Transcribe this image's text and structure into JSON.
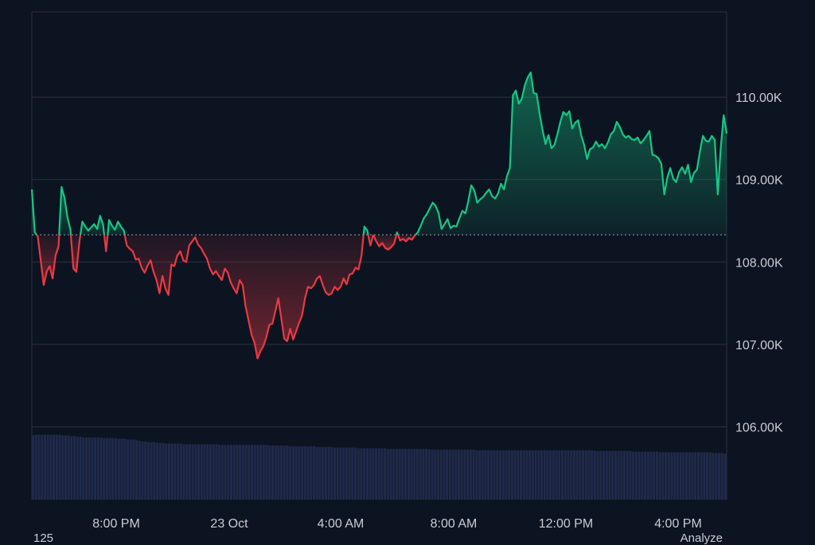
{
  "chart_data": {
    "type": "area",
    "title": "",
    "xlabel": "",
    "ylabel": "",
    "ylim": [
      105000,
      111000
    ],
    "y_ticks": [
      106000,
      107000,
      108000,
      109000,
      110000
    ],
    "y_tick_labels": [
      "106.00K",
      "107.00K",
      "108.00K",
      "109.00K",
      "110.00K"
    ],
    "x_tick_labels": [
      "8:00 PM",
      "23 Oct",
      "4:00 AM",
      "8:00 AM",
      "12:00 PM",
      "4:00 PM"
    ],
    "baseline": 108330,
    "colors": {
      "above": "#16c784",
      "below": "#ea3943",
      "volume": "#1f2a4a",
      "grid": "#2a3140",
      "background": "#0d1421"
    },
    "price": [
      108880,
      108360,
      108310,
      108020,
      107720,
      107880,
      107950,
      107800,
      108080,
      108190,
      108910,
      108780,
      108540,
      108390,
      107920,
      107880,
      108240,
      108490,
      108430,
      108380,
      108420,
      108460,
      108400,
      108560,
      108450,
      108130,
      108510,
      108440,
      108390,
      108490,
      108430,
      108380,
      108200,
      108160,
      108130,
      108030,
      108040,
      107930,
      107870,
      107960,
      108020,
      107880,
      107780,
      107620,
      107830,
      107680,
      107600,
      107970,
      107950,
      108080,
      108130,
      108020,
      108000,
      108200,
      108250,
      108300,
      108210,
      108170,
      108100,
      108040,
      107920,
      107850,
      107890,
      107830,
      107780,
      107920,
      107870,
      107750,
      107680,
      107620,
      107780,
      107720,
      107460,
      107290,
      107120,
      107020,
      106830,
      106920,
      106980,
      107090,
      107240,
      107250,
      107400,
      107560,
      107320,
      107070,
      107040,
      107190,
      107060,
      107160,
      107260,
      107350,
      107560,
      107700,
      107680,
      107720,
      107800,
      107830,
      107720,
      107630,
      107600,
      107620,
      107700,
      107660,
      107700,
      107800,
      107730,
      107850,
      107860,
      107930,
      107910,
      108070,
      108430,
      108380,
      108200,
      108330,
      108250,
      108190,
      108230,
      108170,
      108150,
      108180,
      108220,
      108360,
      108260,
      108280,
      108250,
      108290,
      108270,
      108320,
      108360,
      108440,
      108530,
      108580,
      108650,
      108720,
      108680,
      108590,
      108400,
      108460,
      108520,
      108410,
      108440,
      108430,
      108530,
      108620,
      108590,
      108740,
      108930,
      108870,
      108720,
      108760,
      108790,
      108840,
      108880,
      108800,
      108770,
      108830,
      108950,
      108880,
      109040,
      109140,
      110020,
      110080,
      109920,
      109980,
      110140,
      110240,
      110300,
      110050,
      110040,
      109800,
      109600,
      109430,
      109540,
      109380,
      109420,
      109550,
      109700,
      109820,
      109780,
      109830,
      109620,
      109690,
      109720,
      109540,
      109420,
      109250,
      109370,
      109390,
      109460,
      109400,
      109430,
      109380,
      109450,
      109550,
      109590,
      109700,
      109640,
      109550,
      109510,
      109530,
      109490,
      109480,
      109510,
      109440,
      109480,
      109530,
      109590,
      109300,
      109290,
      109260,
      109190,
      108820,
      109020,
      109140,
      109010,
      108970,
      109090,
      109150,
      109070,
      109180,
      108970,
      109080,
      109120,
      109340,
      109530,
      109470,
      109460,
      109530,
      109480,
      108820,
      109380,
      109780,
      109560
    ],
    "volume": [
      95,
      96,
      96,
      96,
      96,
      96,
      96,
      96,
      96,
      96,
      95,
      95,
      95,
      94,
      94,
      93,
      93,
      92,
      92,
      92,
      92,
      92,
      92,
      92,
      91,
      91,
      91,
      91,
      91,
      90,
      90,
      90,
      89,
      89,
      89,
      88,
      87,
      86,
      86,
      85,
      85,
      85,
      84,
      84,
      84,
      83,
      83,
      83,
      83,
      83,
      83,
      82,
      82,
      82,
      82,
      82,
      82,
      82,
      82,
      82,
      82,
      82,
      82,
      81,
      81,
      81,
      81,
      81,
      81,
      81,
      81,
      81,
      81,
      81,
      81,
      81,
      81,
      81,
      81,
      81,
      80,
      80,
      80,
      80,
      80,
      80,
      80,
      79,
      79,
      79,
      79,
      79,
      79,
      79,
      79,
      79,
      78,
      78,
      78,
      78,
      78,
      78,
      77,
      77,
      77,
      77,
      77,
      77,
      77,
      77,
      76,
      76,
      76,
      76,
      76,
      76,
      76,
      76,
      76,
      76,
      75,
      75,
      75,
      75,
      75,
      75,
      75,
      75,
      75,
      75,
      75,
      75,
      75,
      75,
      74,
      74,
      74,
      74,
      74,
      74,
      74,
      74,
      74,
      74,
      74,
      74,
      74,
      74,
      74,
      74,
      73,
      73,
      73,
      73,
      73,
      73,
      73,
      73,
      73,
      73,
      73,
      73,
      73,
      73,
      73,
      73,
      73,
      73,
      73,
      73,
      73,
      73,
      73,
      73,
      73,
      73,
      73,
      73,
      73,
      73,
      73,
      73,
      73,
      73,
      73,
      73,
      73,
      73,
      73,
      73,
      72,
      72,
      72,
      72,
      72,
      72,
      72,
      72,
      72,
      72,
      72,
      72,
      72,
      71,
      71,
      71,
      71,
      71,
      71,
      71,
      71,
      71,
      70,
      70,
      70,
      70,
      70,
      70,
      70,
      70,
      70,
      70,
      70,
      70,
      70,
      70,
      70,
      70,
      70,
      70,
      69,
      69,
      69,
      69,
      68
    ]
  },
  "footer": {
    "left_text": "125",
    "right_text": "Analyze"
  }
}
